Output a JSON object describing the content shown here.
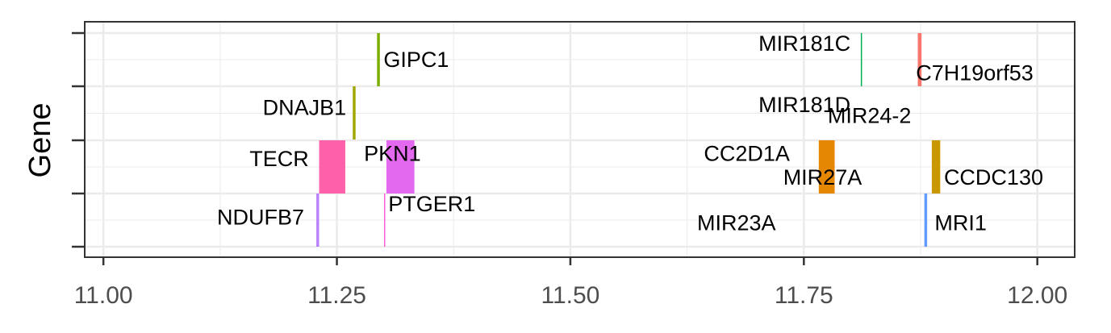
{
  "chart_data": {
    "type": "gene-track",
    "ylabel": "Gene",
    "xlim": [
      10.98,
      12.04
    ],
    "x_ticks": [
      11.0,
      11.25,
      11.5,
      11.75,
      12.0
    ],
    "x_tick_labels": [
      "11.00",
      "11.25",
      "11.50",
      "11.75",
      "12.00"
    ],
    "tracks": 4,
    "grid": true,
    "genes": [
      {
        "name": "GIPC1",
        "start": 11.293,
        "end": 11.296,
        "track": 1,
        "color": "#7cae00",
        "label_x": 11.3,
        "label_dy": 0.5,
        "label_anchor": "start"
      },
      {
        "name": "MIR181C",
        "start": 11.811,
        "end": 11.8115,
        "track": 1,
        "color": "#00b050",
        "label_x": 11.8,
        "label_dy": 0.2,
        "label_anchor": "end"
      },
      {
        "name": "C7H19orf53",
        "start": 11.872,
        "end": 11.876,
        "track": 1,
        "color": "#f8766d",
        "label_x": 11.87,
        "label_dy": 0.75,
        "label_anchor": "start"
      },
      {
        "name": "DNAJB1",
        "start": 11.267,
        "end": 11.27,
        "track": 2,
        "color": "#a3a500",
        "label_x": 11.26,
        "label_dy": 0.4,
        "label_anchor": "end"
      },
      {
        "name": "MIR181D",
        "start": null,
        "end": null,
        "track": 2,
        "color": "",
        "label_x": 11.8,
        "label_dy": 0.35,
        "label_anchor": "end"
      },
      {
        "name": "MIR24-2",
        "start": null,
        "end": null,
        "track": 2,
        "color": "",
        "label_x": 11.865,
        "label_dy": 0.55,
        "label_anchor": "end",
        "label_right": 11.94
      },
      {
        "name": "TECR",
        "start": 11.231,
        "end": 11.259,
        "track": 3,
        "color": "#fc61a9",
        "label_x": 11.22,
        "label_dy": 0.35,
        "label_anchor": "end"
      },
      {
        "name": "PKN1",
        "start": 11.303,
        "end": 11.333,
        "track": 3,
        "color": "#e36aef",
        "label_x": 11.34,
        "label_dy": 0.25,
        "label_anchor": "end"
      },
      {
        "name": "CC2D1A",
        "start": null,
        "end": null,
        "track": 3,
        "color": "",
        "label_x": 11.735,
        "label_dy": 0.25,
        "label_anchor": "end"
      },
      {
        "name": "MIR27A",
        "start": 11.766,
        "end": 11.783,
        "track": 3,
        "color": "#e58700",
        "label_x": 11.77,
        "label_dy": 0.7,
        "label_anchor": "middle"
      },
      {
        "name": "CCDC130",
        "start": 11.887,
        "end": 11.896,
        "track": 3,
        "color": "#c99800",
        "label_x": 11.9,
        "label_dy": 0.7,
        "label_anchor": "start"
      },
      {
        "name": "NDUFB7",
        "start": 11.228,
        "end": 11.231,
        "track": 4,
        "color": "#b983ff",
        "label_x": 11.215,
        "label_dy": 0.45,
        "label_anchor": "end"
      },
      {
        "name": "PTGER1",
        "start": 11.3005,
        "end": 11.3015,
        "track": 4,
        "color": "#fd61d1",
        "label_x": 11.305,
        "label_dy": 0.2,
        "label_anchor": "start"
      },
      {
        "name": "MIR23A",
        "start": null,
        "end": null,
        "track": 4,
        "color": "",
        "label_x": 11.72,
        "label_dy": 0.55,
        "label_anchor": "end"
      },
      {
        "name": "MRI1",
        "start": 11.879,
        "end": 11.882,
        "track": 4,
        "color": "#619cff",
        "label_x": 11.89,
        "label_dy": 0.55,
        "label_anchor": "start"
      }
    ]
  }
}
